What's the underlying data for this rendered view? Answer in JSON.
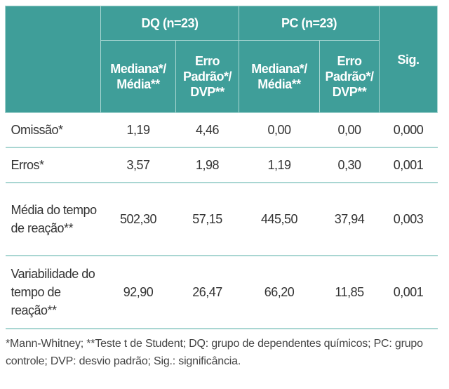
{
  "table": {
    "groups": [
      "DQ (n=23)",
      "PC (n=23)"
    ],
    "sig_header": "Sig.",
    "sub_headers": [
      "Mediana*/ Média**",
      "Erro Padrão*/ DVP**",
      "Mediana*/ Média**",
      "Erro Padrão*/ DVP**"
    ],
    "rows": [
      {
        "label": "Omissão*",
        "values": [
          "1,19",
          "4,46",
          "0,00",
          "0,00",
          "0,000"
        ]
      },
      {
        "label": "Erros*",
        "values": [
          "3,57",
          "1,98",
          "1,19",
          "0,30",
          "0,001"
        ]
      },
      {
        "label": "Média do tempo de reação**",
        "values": [
          "502,30",
          "57,15",
          "445,50",
          "37,94",
          "0,003"
        ]
      },
      {
        "label": "Variabilidade do tempo de reação**",
        "values": [
          "92,90",
          "26,47",
          "66,20",
          "11,85",
          "0,001"
        ]
      }
    ]
  },
  "footnote": "*Mann-Whitney; **Teste t de Student; DQ: grupo de dependentes químicos; PC: grupo controle; DVP: desvio padrão; Sig.: significância.",
  "colors": {
    "header_bg": "#3f9e99",
    "rule": "#a9d6d2"
  }
}
